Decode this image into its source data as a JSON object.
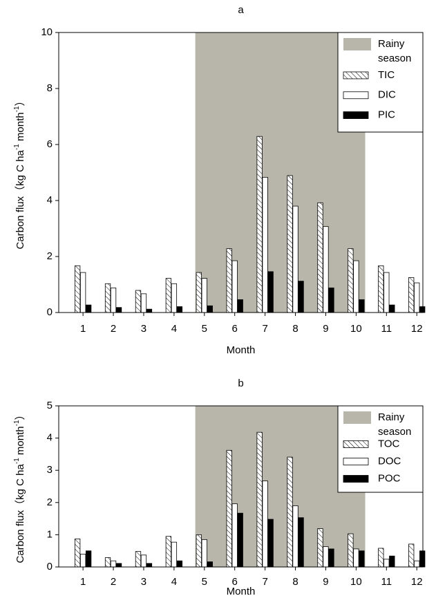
{
  "chart_data": [
    {
      "type": "bar",
      "title": "a",
      "x_label": "Month",
      "y_label_parts": [
        "Carbon flux（kg C ha",
        "-1",
        " month",
        "-1",
        "）"
      ],
      "x": [
        1,
        2,
        3,
        4,
        5,
        6,
        7,
        8,
        9,
        10,
        11,
        12
      ],
      "xlim": [
        0.2,
        12.2
      ],
      "xticks": [
        1,
        2,
        3,
        4,
        5,
        6,
        7,
        8,
        9,
        10,
        11,
        12
      ],
      "ylim": [
        0,
        10
      ],
      "yticks": [
        0,
        2,
        4,
        6,
        8,
        10
      ],
      "shade": {
        "name": "Rainy season",
        "color": "#b8b6aa",
        "x_range": [
          4.7,
          10.3
        ]
      },
      "legend": "upper right",
      "series": [
        {
          "name": "TIC",
          "color": "#ffffff",
          "hatch": true,
          "values": [
            1.67,
            1.03,
            0.79,
            1.22,
            1.43,
            2.28,
            6.29,
            4.89,
            3.92,
            2.28,
            1.67,
            1.25
          ]
        },
        {
          "name": "DIC",
          "color": "#ffffff",
          "hatch": false,
          "values": [
            1.43,
            0.88,
            0.67,
            1.03,
            1.22,
            1.85,
            4.83,
            3.8,
            3.07,
            1.85,
            1.43,
            1.06
          ]
        },
        {
          "name": "PIC",
          "color": "#000000",
          "hatch": false,
          "values": [
            0.27,
            0.18,
            0.12,
            0.21,
            0.24,
            0.46,
            1.46,
            1.12,
            0.88,
            0.46,
            0.27,
            0.21
          ]
        }
      ]
    },
    {
      "type": "bar",
      "title": "b",
      "x_label": "Month",
      "y_label_parts": [
        "Carbon flux（kg C ha",
        "-1",
        " month",
        "-1",
        "）"
      ],
      "x": [
        1,
        2,
        3,
        4,
        5,
        6,
        7,
        8,
        9,
        10,
        11,
        12
      ],
      "xlim": [
        0.2,
        12.2
      ],
      "xticks": [
        1,
        2,
        3,
        4,
        5,
        6,
        7,
        8,
        9,
        10,
        11,
        12
      ],
      "ylim": [
        0,
        5
      ],
      "yticks": [
        0,
        1,
        2,
        3,
        4,
        5
      ],
      "shade": {
        "name": "Rainy season",
        "color": "#b8b6aa",
        "x_range": [
          4.7,
          10.3
        ]
      },
      "legend": "upper right",
      "series": [
        {
          "name": "TOC",
          "color": "#ffffff",
          "hatch": true,
          "values": [
            0.87,
            0.29,
            0.48,
            0.95,
            1.0,
            3.62,
            4.18,
            3.41,
            1.19,
            1.03,
            0.58,
            0.71
          ]
        },
        {
          "name": "DOC",
          "color": "#ffffff",
          "hatch": false,
          "values": [
            0.4,
            0.19,
            0.37,
            0.77,
            0.85,
            1.96,
            2.67,
            1.9,
            0.63,
            0.56,
            0.24,
            0.19
          ]
        },
        {
          "name": "POC",
          "color": "#000000",
          "hatch": false,
          "values": [
            0.5,
            0.11,
            0.11,
            0.19,
            0.16,
            1.67,
            1.48,
            1.53,
            0.56,
            0.5,
            0.34,
            0.5
          ]
        }
      ]
    }
  ]
}
